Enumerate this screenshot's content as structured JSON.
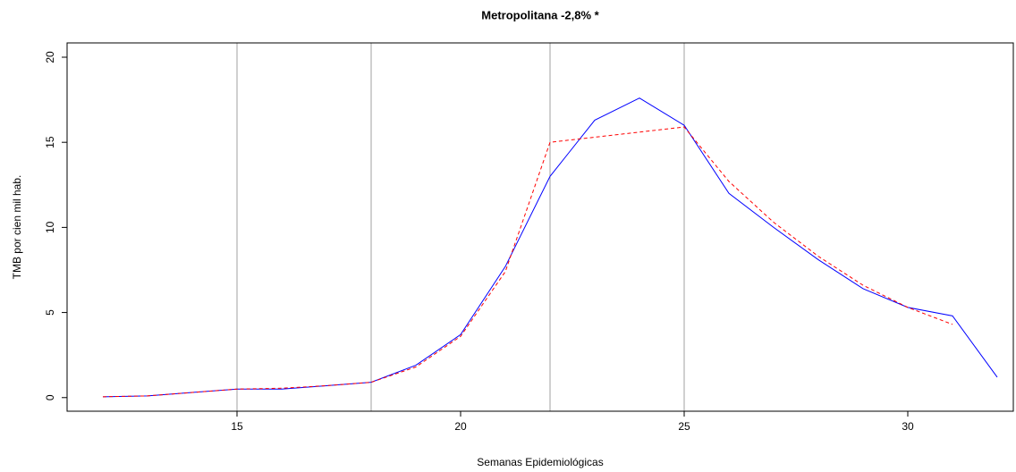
{
  "chart_data": {
    "type": "line",
    "title": "Metropolitana -2,8% *",
    "xlabel": "Semanas Epidemiológicas",
    "ylabel": "TMB por cien mil hab.",
    "x": [
      12,
      13,
      14,
      15,
      16,
      17,
      18,
      19,
      20,
      21,
      22,
      23,
      24,
      25,
      26,
      27,
      28,
      29,
      30,
      31,
      32
    ],
    "series": [
      {
        "color": "#0000ff",
        "dashed": false,
        "values": [
          0.05,
          0.1,
          0.3,
          0.5,
          0.5,
          0.7,
          0.9,
          1.9,
          3.7,
          7.7,
          13.0,
          16.3,
          17.6,
          16.0,
          12.0,
          10.0,
          8.1,
          6.4,
          5.3,
          4.8,
          1.2
        ]
      },
      {
        "color": "#ff0000",
        "dashed": true,
        "values": [
          0.05,
          0.1,
          0.3,
          0.5,
          0.55,
          0.7,
          0.9,
          1.8,
          3.6,
          7.4,
          15.0,
          15.3,
          15.6,
          15.9,
          12.7,
          10.3,
          8.3,
          6.6,
          5.3,
          4.3,
          null
        ]
      }
    ],
    "vlines": [
      15,
      18,
      22,
      25
    ],
    "vline_color": "#a0a0a0",
    "xlim": [
      11.2,
      32.36
    ],
    "ylim": [
      -0.8,
      20.84
    ],
    "xticks": [
      15,
      20,
      25,
      30
    ],
    "yticks": [
      0,
      5,
      10,
      15,
      20
    ]
  }
}
